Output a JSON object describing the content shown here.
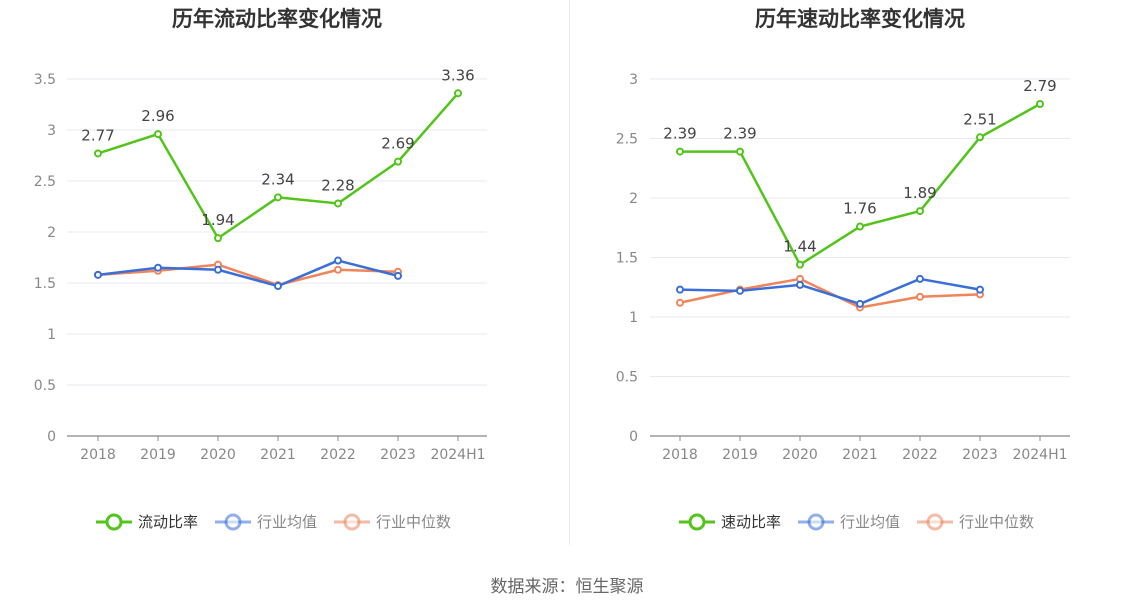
{
  "chart_data": [
    {
      "type": "line",
      "title": "历年流动比率变化情况",
      "categories": [
        "2018",
        "2019",
        "2020",
        "2021",
        "2022",
        "2023",
        "2024H1"
      ],
      "ylim": [
        0,
        3.5
      ],
      "yticks": [
        "0",
        "0.5",
        "1",
        "1.5",
        "2",
        "2.5",
        "3",
        "3.5"
      ],
      "grid": true,
      "legend": "bottom",
      "series": [
        {
          "name": "流动比率",
          "color": "#52c41a",
          "values": [
            2.77,
            2.96,
            1.94,
            2.34,
            2.28,
            2.69,
            3.36
          ],
          "labels": [
            "2.77",
            "2.96",
            "1.94",
            "2.34",
            "2.28",
            "2.69",
            "3.36"
          ]
        },
        {
          "name": "行业均值",
          "color": "#3a6fd8",
          "values": [
            1.58,
            1.65,
            1.63,
            1.47,
            1.72,
            1.57,
            null
          ]
        },
        {
          "name": "行业中位数",
          "color": "#f0845a",
          "values": [
            1.58,
            1.62,
            1.68,
            1.48,
            1.63,
            1.61,
            null
          ]
        }
      ]
    },
    {
      "type": "line",
      "title": "历年速动比率变化情况",
      "categories": [
        "2018",
        "2019",
        "2020",
        "2021",
        "2022",
        "2023",
        "2024H1"
      ],
      "ylim": [
        0,
        3
      ],
      "yticks": [
        "0",
        "0.5",
        "1",
        "1.5",
        "2",
        "2.5",
        "3"
      ],
      "grid": true,
      "legend": "bottom",
      "series": [
        {
          "name": "速动比率",
          "color": "#52c41a",
          "values": [
            2.39,
            2.39,
            1.44,
            1.76,
            1.89,
            2.51,
            2.79
          ],
          "labels": [
            "2.39",
            "2.39",
            "1.44",
            "1.76",
            "1.89",
            "2.51",
            "2.79"
          ]
        },
        {
          "name": "行业均值",
          "color": "#3a6fd8",
          "values": [
            1.23,
            1.22,
            1.27,
            1.11,
            1.32,
            1.23,
            null
          ]
        },
        {
          "name": "行业中位数",
          "color": "#f0845a",
          "values": [
            1.12,
            1.23,
            1.32,
            1.08,
            1.17,
            1.19,
            null
          ]
        }
      ]
    }
  ],
  "source": "数据来源：恒生聚源"
}
